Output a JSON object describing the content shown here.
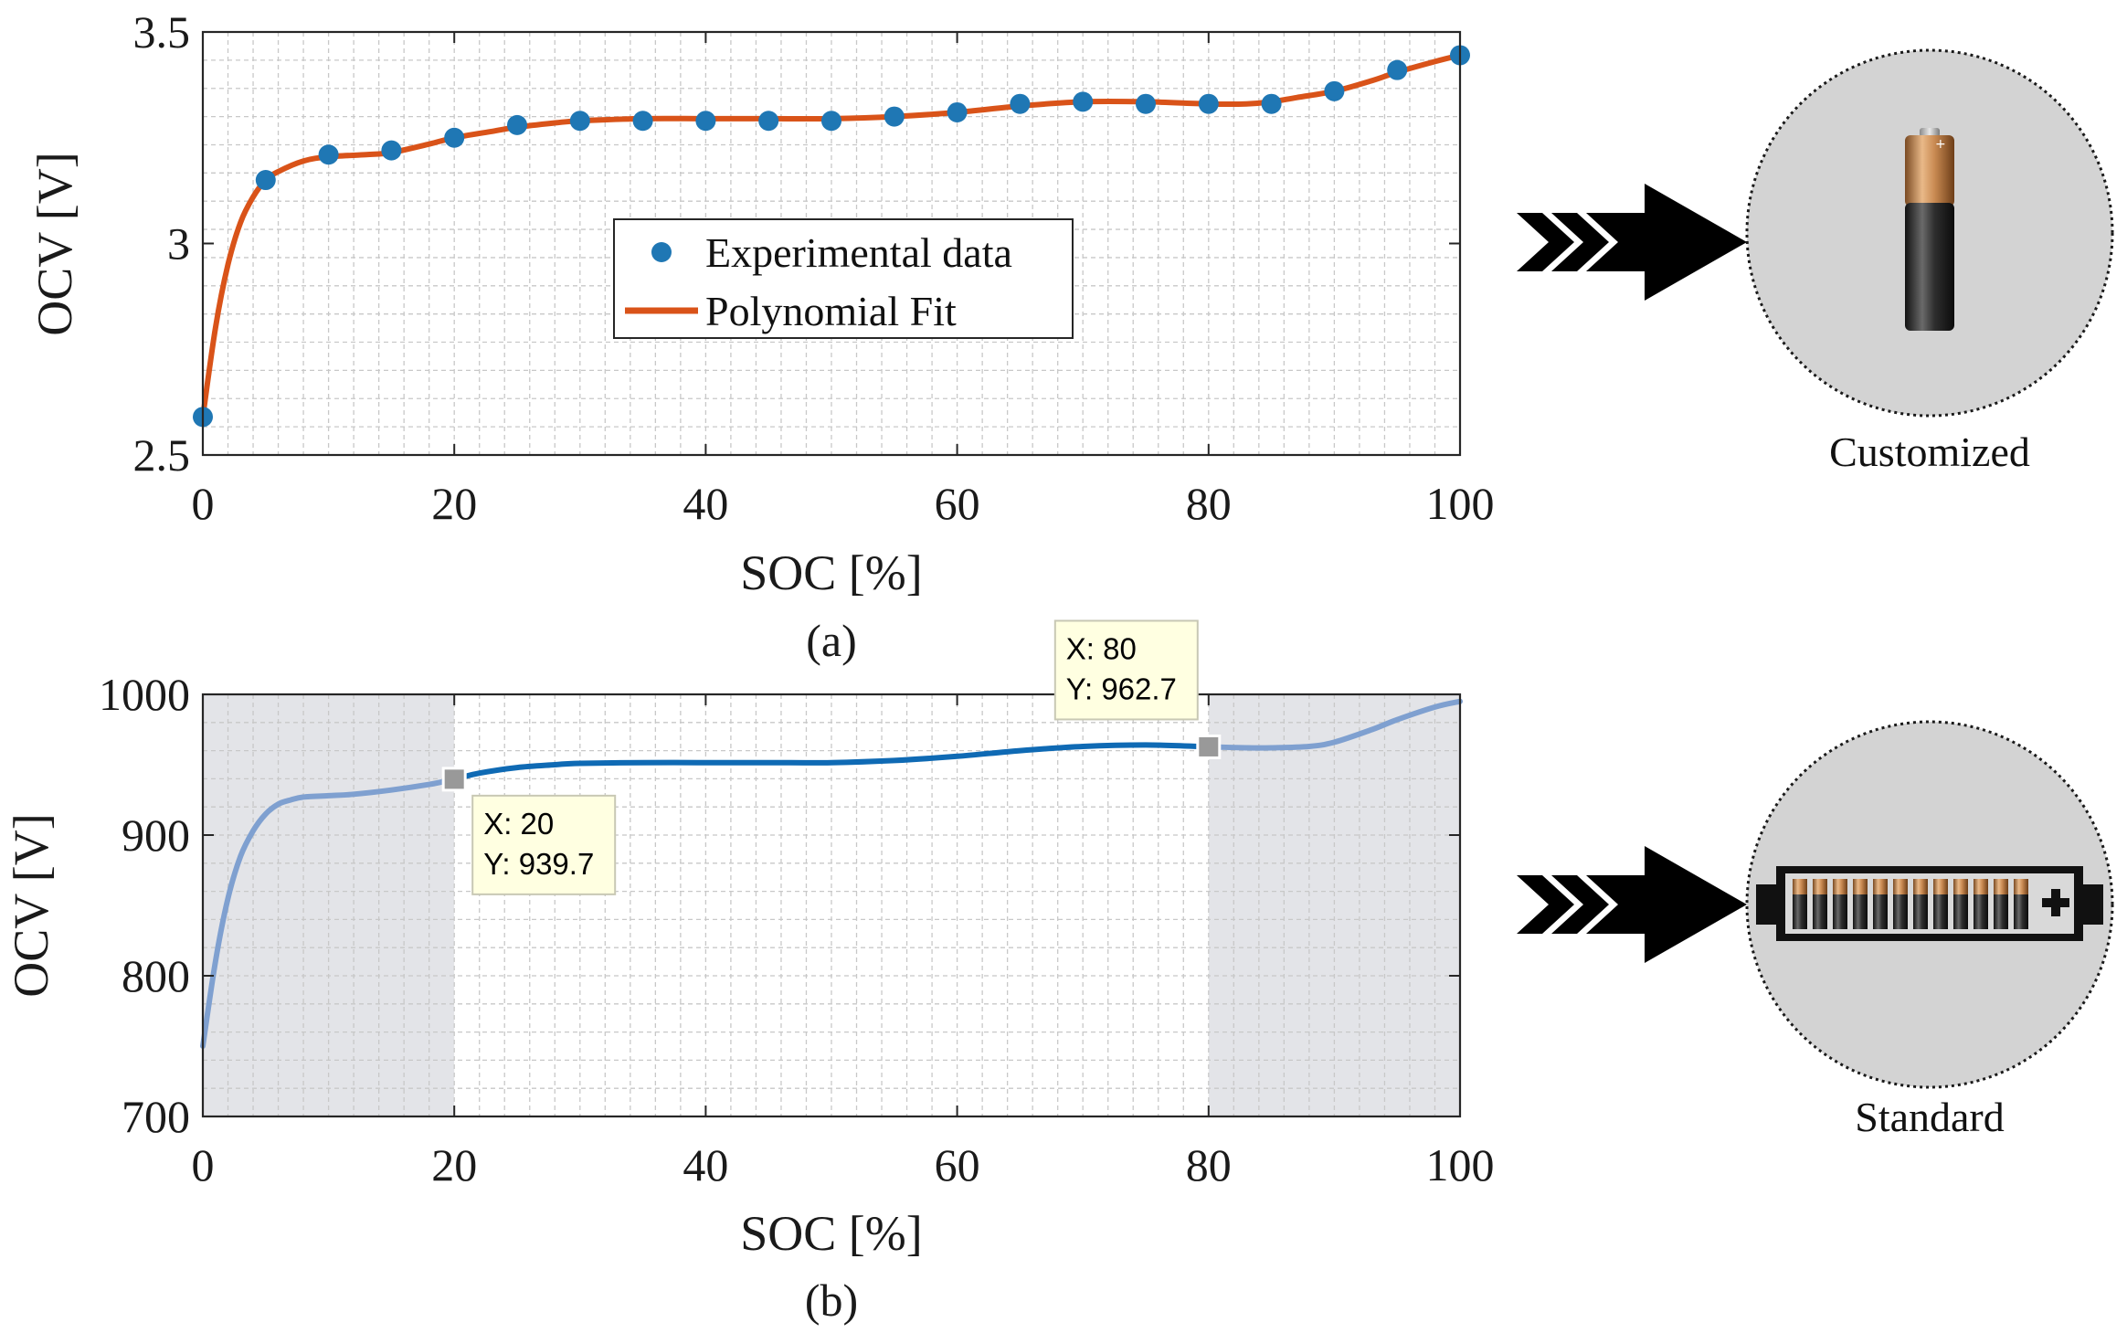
{
  "colors": {
    "data_points": "#1f77b4",
    "fit_line": "#d95319",
    "curve_main": "#0f6ab4",
    "curve_faded": "#7fa0d0",
    "shade": "#e3e4e8",
    "grid": "#c8c8c8",
    "tip_bg": "#ffffe1",
    "marker": "#999999",
    "circle_bg": "#d3d3d3"
  },
  "chart_data": [
    {
      "id": "a",
      "type": "scatter",
      "caption": "(a)",
      "xlabel": "SOC [%]",
      "ylabel": "OCV [V]",
      "xlim": [
        0,
        100
      ],
      "ylim": [
        2.5,
        3.5
      ],
      "xticks": [
        0,
        20,
        40,
        60,
        80,
        100
      ],
      "xtick_labels": [
        "0",
        "20",
        "40",
        "60",
        "80",
        "100"
      ],
      "yticks": [
        2.5,
        3.0,
        3.5
      ],
      "ytick_labels": [
        "2.5",
        "3",
        "3.5"
      ],
      "grid": true,
      "legend_position": "center",
      "series": [
        {
          "name": "Experimental data",
          "kind": "scatter",
          "x": [
            0,
            5,
            10,
            15,
            20,
            25,
            30,
            35,
            40,
            45,
            50,
            55,
            60,
            65,
            70,
            75,
            80,
            85,
            90,
            95,
            100
          ],
          "y": [
            2.59,
            3.15,
            3.21,
            3.22,
            3.25,
            3.28,
            3.29,
            3.29,
            3.29,
            3.29,
            3.29,
            3.3,
            3.31,
            3.33,
            3.335,
            3.33,
            3.33,
            3.33,
            3.36,
            3.41,
            3.445
          ]
        },
        {
          "name": "Polynomial Fit",
          "kind": "line",
          "x": [
            0,
            1,
            2,
            3,
            4,
            5,
            6,
            8,
            10,
            13,
            15,
            18,
            20,
            23,
            25,
            28,
            30,
            35,
            40,
            45,
            50,
            55,
            60,
            65,
            70,
            75,
            80,
            83,
            85,
            87,
            90,
            93,
            95,
            98,
            100
          ],
          "y": [
            2.59,
            2.8,
            2.95,
            3.05,
            3.11,
            3.15,
            3.17,
            3.195,
            3.205,
            3.21,
            3.215,
            3.235,
            3.25,
            3.265,
            3.275,
            3.285,
            3.29,
            3.295,
            3.295,
            3.295,
            3.295,
            3.3,
            3.31,
            3.325,
            3.335,
            3.335,
            3.33,
            3.33,
            3.335,
            3.345,
            3.36,
            3.385,
            3.405,
            3.43,
            3.445
          ]
        }
      ]
    },
    {
      "id": "b",
      "type": "line",
      "caption": "(b)",
      "xlabel": "SOC [%]",
      "ylabel": "OCV [V]",
      "xlim": [
        0,
        100
      ],
      "ylim": [
        700,
        1000
      ],
      "xticks": [
        0,
        20,
        40,
        60,
        80,
        100
      ],
      "xtick_labels": [
        "0",
        "20",
        "40",
        "60",
        "80",
        "100"
      ],
      "yticks": [
        700,
        800,
        900,
        1000
      ],
      "ytick_labels": [
        "700",
        "800",
        "900",
        "1000"
      ],
      "grid": true,
      "shaded_ranges": [
        [
          0,
          20
        ],
        [
          80,
          100
        ]
      ],
      "series": [
        {
          "name": "OCV curve",
          "x": [
            0,
            1,
            2,
            3,
            4,
            5,
            6,
            7,
            8,
            10,
            12,
            15,
            18,
            20,
            22,
            25,
            28,
            30,
            35,
            40,
            45,
            50,
            55,
            60,
            65,
            70,
            75,
            80,
            83,
            85,
            88,
            90,
            93,
            95,
            98,
            100
          ],
          "y": [
            750,
            810,
            855,
            885,
            903,
            915,
            922,
            925,
            927,
            928,
            929,
            932,
            936,
            939.7,
            944,
            948,
            950,
            951,
            951.5,
            951.5,
            951.5,
            951.5,
            953,
            956,
            960,
            963,
            964,
            962.7,
            962,
            962,
            963,
            966,
            975,
            982,
            991,
            995
          ]
        }
      ],
      "datatips": [
        {
          "x": 20,
          "y": 939.7,
          "x_text": "X: 20",
          "y_text": "Y: 939.7",
          "placement": "below-right"
        },
        {
          "x": 80,
          "y": 962.7,
          "x_text": "X: 80",
          "y_text": "Y: 962.7",
          "placement": "above-left"
        }
      ]
    }
  ],
  "icons": {
    "top": {
      "label": "Customized",
      "icon": "single-battery-icon"
    },
    "bottom": {
      "label": "Standard",
      "icon": "battery-pack-icon"
    }
  }
}
